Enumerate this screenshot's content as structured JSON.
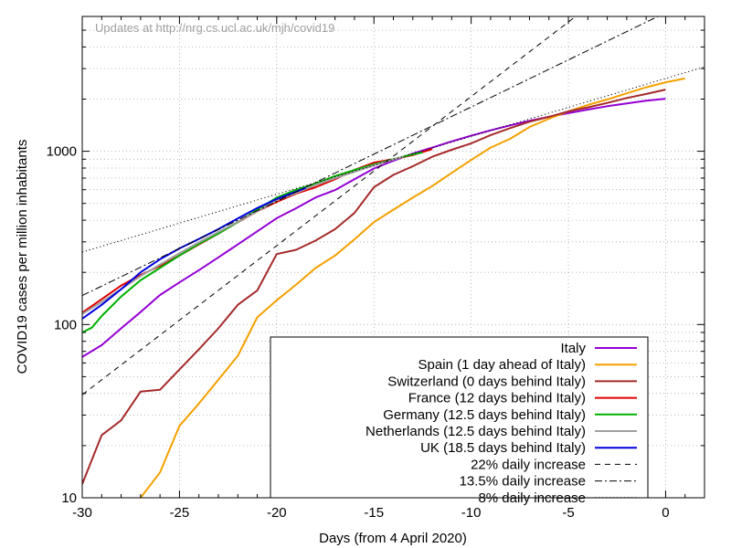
{
  "chart_data": {
    "type": "line",
    "title": "",
    "watermark": "Updates at http://nrg.cs.ucl.ac.uk/mjh/covid19",
    "xlabel": "Days (from 4 April 2020)",
    "ylabel": "COVID19 cases per million inhabitants",
    "xlim": [
      -30,
      2
    ],
    "ylim": [
      10,
      6000
    ],
    "yscale": "log",
    "grid": true,
    "legend_position": "bottom-right",
    "x_ticks": [
      -30,
      -25,
      -20,
      -15,
      -10,
      -5,
      0
    ],
    "x_tick_labels": [
      "-30",
      "-25",
      "-20",
      "-15",
      "-10",
      "-5",
      "0"
    ],
    "y_ticks": [
      10,
      100,
      1000
    ],
    "y_tick_labels": [
      "10",
      "100",
      "1000"
    ],
    "series": [
      {
        "name": "Italy",
        "color": "#9400d3",
        "dash": "solid",
        "x": [
          -30,
          -29,
          -28,
          -27,
          -26,
          -25,
          -24,
          -23,
          -22,
          -21,
          -20,
          -19,
          -18,
          -17,
          -16,
          -15,
          -14,
          -13,
          -12,
          -11,
          -10,
          -9,
          -8,
          -7,
          -6,
          -5,
          -4,
          -3,
          -2,
          -1,
          0
        ],
        "y": [
          65,
          76,
          95,
          118,
          148,
          175,
          206,
          244,
          290,
          345,
          411,
          469,
          541,
          597,
          690,
          795,
          881,
          970,
          1050,
          1140,
          1230,
          1320,
          1410,
          1500,
          1580,
          1660,
          1740,
          1820,
          1890,
          1960,
          2010
        ]
      },
      {
        "name": "Spain (1 day ahead of Italy)",
        "color": "#f4a000",
        "dash": "solid",
        "x": [
          -27,
          -26,
          -25,
          -24,
          -23,
          -22,
          -21,
          -20,
          -19,
          -18,
          -17,
          -16,
          -15,
          -14,
          -13,
          -12,
          -11,
          -10,
          -9,
          -8,
          -7,
          -6,
          -5,
          -4,
          -3,
          -2,
          -1,
          0,
          1
        ],
        "y": [
          10,
          14,
          26,
          35,
          48,
          66,
          110,
          138,
          170,
          212,
          250,
          310,
          390,
          460,
          540,
          630,
          750,
          890,
          1050,
          1180,
          1380,
          1540,
          1700,
          1850,
          1990,
          2160,
          2340,
          2500,
          2630
        ]
      },
      {
        "name": "Switzerland (0 days behind Italy)",
        "color": "#a52a2a",
        "dash": "solid",
        "x": [
          -30,
          -29,
          -28,
          -27,
          -26,
          -25,
          -24,
          -23,
          -22,
          -21,
          -20,
          -19,
          -18,
          -17,
          -16,
          -15,
          -14,
          -13,
          -12,
          -11,
          -10,
          -9,
          -8,
          -7,
          -6,
          -5,
          -4,
          -3,
          -2,
          -1,
          0
        ],
        "y": [
          12,
          23,
          28,
          41,
          42,
          55,
          72,
          95,
          130,
          157,
          255,
          270,
          305,
          355,
          440,
          620,
          730,
          820,
          930,
          1020,
          1110,
          1240,
          1360,
          1480,
          1580,
          1700,
          1790,
          1900,
          2030,
          2140,
          2270
        ]
      },
      {
        "name": "France (12 days behind Italy)",
        "color": "#e00000",
        "dash": "solid",
        "x": [
          -30,
          -29,
          -28,
          -27,
          -26,
          -25,
          -24,
          -23,
          -22,
          -21,
          -20,
          -19,
          -18,
          -17,
          -16,
          -15,
          -14,
          -13,
          -12
        ],
        "y": [
          117,
          140,
          168,
          193,
          218,
          250,
          290,
          335,
          390,
          450,
          510,
          570,
          620,
          690,
          780,
          860,
          900,
          950,
          1030
        ]
      },
      {
        "name": "Germany (12.5 days behind Italy)",
        "color": "#00b000",
        "dash": "solid",
        "x": [
          -30,
          -29.5,
          -29,
          -28,
          -27,
          -26,
          -25,
          -24,
          -23,
          -22,
          -21,
          -20,
          -19,
          -18,
          -17,
          -16,
          -15,
          -14,
          -13,
          -12.5
        ],
        "y": [
          90,
          96,
          112,
          145,
          180,
          212,
          250,
          292,
          335,
          390,
          460,
          540,
          600,
          650,
          720,
          780,
          840,
          900,
          960,
          985
        ]
      },
      {
        "name": "Netherlands (12.5 days behind Italy)",
        "color": "#a0a0a0",
        "dash": "solid",
        "x": [
          -30,
          -29,
          -28,
          -27,
          -26,
          -25,
          -24,
          -23,
          -22,
          -21,
          -20,
          -19,
          -18,
          -17,
          -16,
          -15,
          -14,
          -13.5
        ],
        "y": [
          115,
          135,
          160,
          190,
          222,
          258,
          298,
          342,
          392,
          450,
          520,
          575,
          640,
          700,
          760,
          830,
          895,
          930
        ]
      },
      {
        "name": "UK (18.5 days behind Italy)",
        "color": "#0000e0",
        "dash": "solid",
        "x": [
          -30,
          -29,
          -28,
          -27,
          -26,
          -25,
          -24,
          -23,
          -22,
          -21,
          -20,
          -19,
          -18.5
        ],
        "y": [
          108,
          130,
          160,
          200,
          238,
          275,
          312,
          355,
          410,
          470,
          530,
          585,
          615
        ]
      },
      {
        "name": "22% daily increase",
        "color": "#000000",
        "dash": "dashed",
        "x": [
          -30,
          2
        ],
        "y": [
          39.3,
          22300
        ]
      },
      {
        "name": "13.5% daily increase",
        "color": "#000000",
        "dash": "dashdot",
        "x": [
          -30,
          2
        ],
        "y": [
          147,
          8100
        ]
      },
      {
        "name": "8% daily increase",
        "color": "#000000",
        "dash": "dotted",
        "x": [
          -30,
          2
        ],
        "y": [
          262,
          3070
        ]
      }
    ]
  }
}
